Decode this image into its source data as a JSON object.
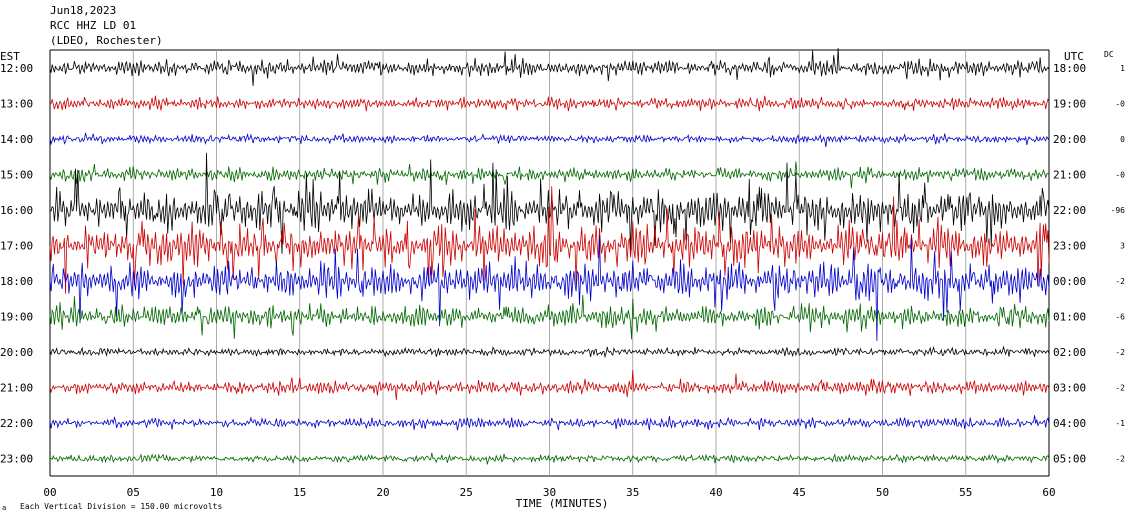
{
  "header": {
    "date": "Jun18,2023",
    "station": "RCC HHZ LD 01",
    "location": "(LDEO, Rochester)"
  },
  "left_timezone": "EST",
  "right_timezone": "UTC",
  "dc_label": "DC",
  "footer": {
    "scale_note": "Each Vertical Division = 150.00 microvolts",
    "corner_mark": "a"
  },
  "chart_data": {
    "type": "line",
    "title": "",
    "xlabel": "TIME (MINUTES)",
    "x_ticks": [
      "00",
      "05",
      "10",
      "15",
      "20",
      "25",
      "30",
      "35",
      "40",
      "45",
      "50",
      "55",
      "60"
    ],
    "xlim": [
      0,
      60
    ],
    "grid": true,
    "trace_colors": [
      "#000000",
      "#cc0000",
      "#0000cc",
      "#006600"
    ],
    "rows": [
      {
        "est": "12:00",
        "utc": "18:00",
        "dc": "1",
        "color": "#000000",
        "activity": 0.35
      },
      {
        "est": "13:00",
        "utc": "19:00",
        "dc": "-0",
        "color": "#cc0000",
        "activity": 0.25
      },
      {
        "est": "14:00",
        "utc": "20:00",
        "dc": "0",
        "color": "#0000cc",
        "activity": 0.15
      },
      {
        "est": "15:00",
        "utc": "21:00",
        "dc": "-0",
        "color": "#006600",
        "activity": 0.3
      },
      {
        "est": "16:00",
        "utc": "22:00",
        "dc": "-96",
        "color": "#000000",
        "activity": 0.9
      },
      {
        "est": "17:00",
        "utc": "23:00",
        "dc": "3",
        "color": "#cc0000",
        "activity": 0.95
      },
      {
        "est": "18:00",
        "utc": "00:00",
        "dc": "-2",
        "color": "#0000cc",
        "activity": 0.85
      },
      {
        "est": "19:00",
        "utc": "01:00",
        "dc": "-6",
        "color": "#006600",
        "activity": 0.5
      },
      {
        "est": "20:00",
        "utc": "02:00",
        "dc": "-2",
        "color": "#000000",
        "activity": 0.15
      },
      {
        "est": "21:00",
        "utc": "03:00",
        "dc": "-2",
        "color": "#cc0000",
        "activity": 0.3
      },
      {
        "est": "22:00",
        "utc": "04:00",
        "dc": "-1",
        "color": "#0000cc",
        "activity": 0.2
      },
      {
        "est": "23:00",
        "utc": "05:00",
        "dc": "-2",
        "color": "#006600",
        "activity": 0.12
      }
    ]
  }
}
